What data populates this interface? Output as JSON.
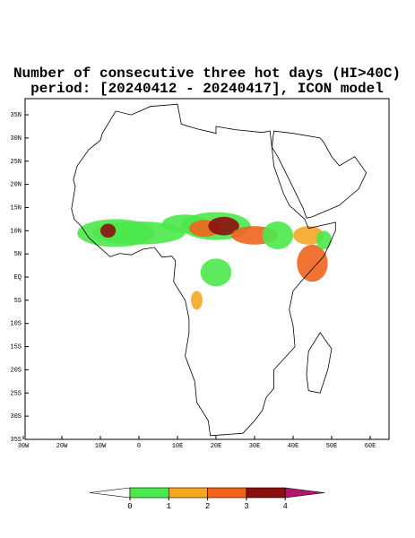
{
  "title": "Number of consecutive three hot days (HI>40C)",
  "subtitle": "period: [20240412 - 20240417], ICON model",
  "lat_labels": [
    "35N",
    "30N",
    "25N",
    "20N",
    "15N",
    "10N",
    "5N",
    "EQ",
    "5S",
    "10S",
    "15S",
    "20S",
    "25S",
    "30S",
    "35S"
  ],
  "lon_labels": [
    "30W",
    "20W",
    "10W",
    "0",
    "10E",
    "20E",
    "30E",
    "40E",
    "50E",
    "60E"
  ],
  "colorbar": {
    "levels": [
      0,
      1,
      2,
      3,
      4
    ],
    "colors": [
      "#ffffff",
      "#4be84b",
      "#f5a623",
      "#f0641e",
      "#8b0f0f",
      "#b4146e"
    ]
  }
}
